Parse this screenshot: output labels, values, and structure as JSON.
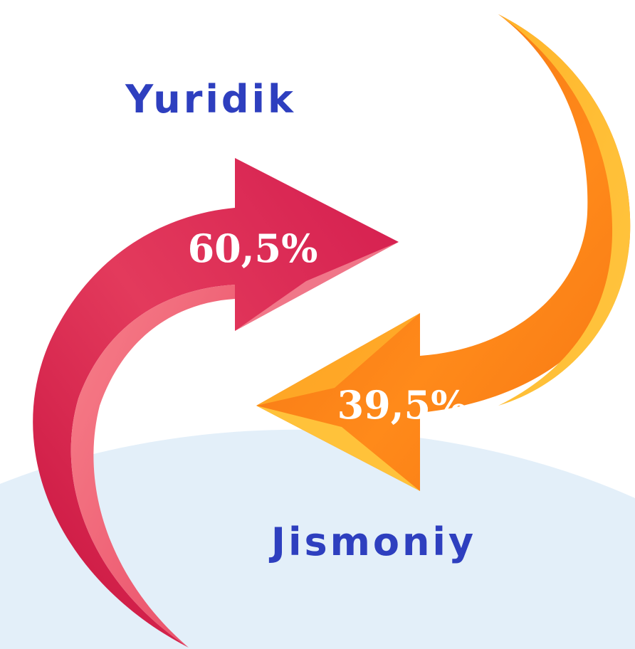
{
  "labels": {
    "top": "Yuridik",
    "bottom": "Jismoniy"
  },
  "arrows": [
    {
      "label": "60,5%"
    },
    {
      "label": "39,5%"
    }
  ]
}
